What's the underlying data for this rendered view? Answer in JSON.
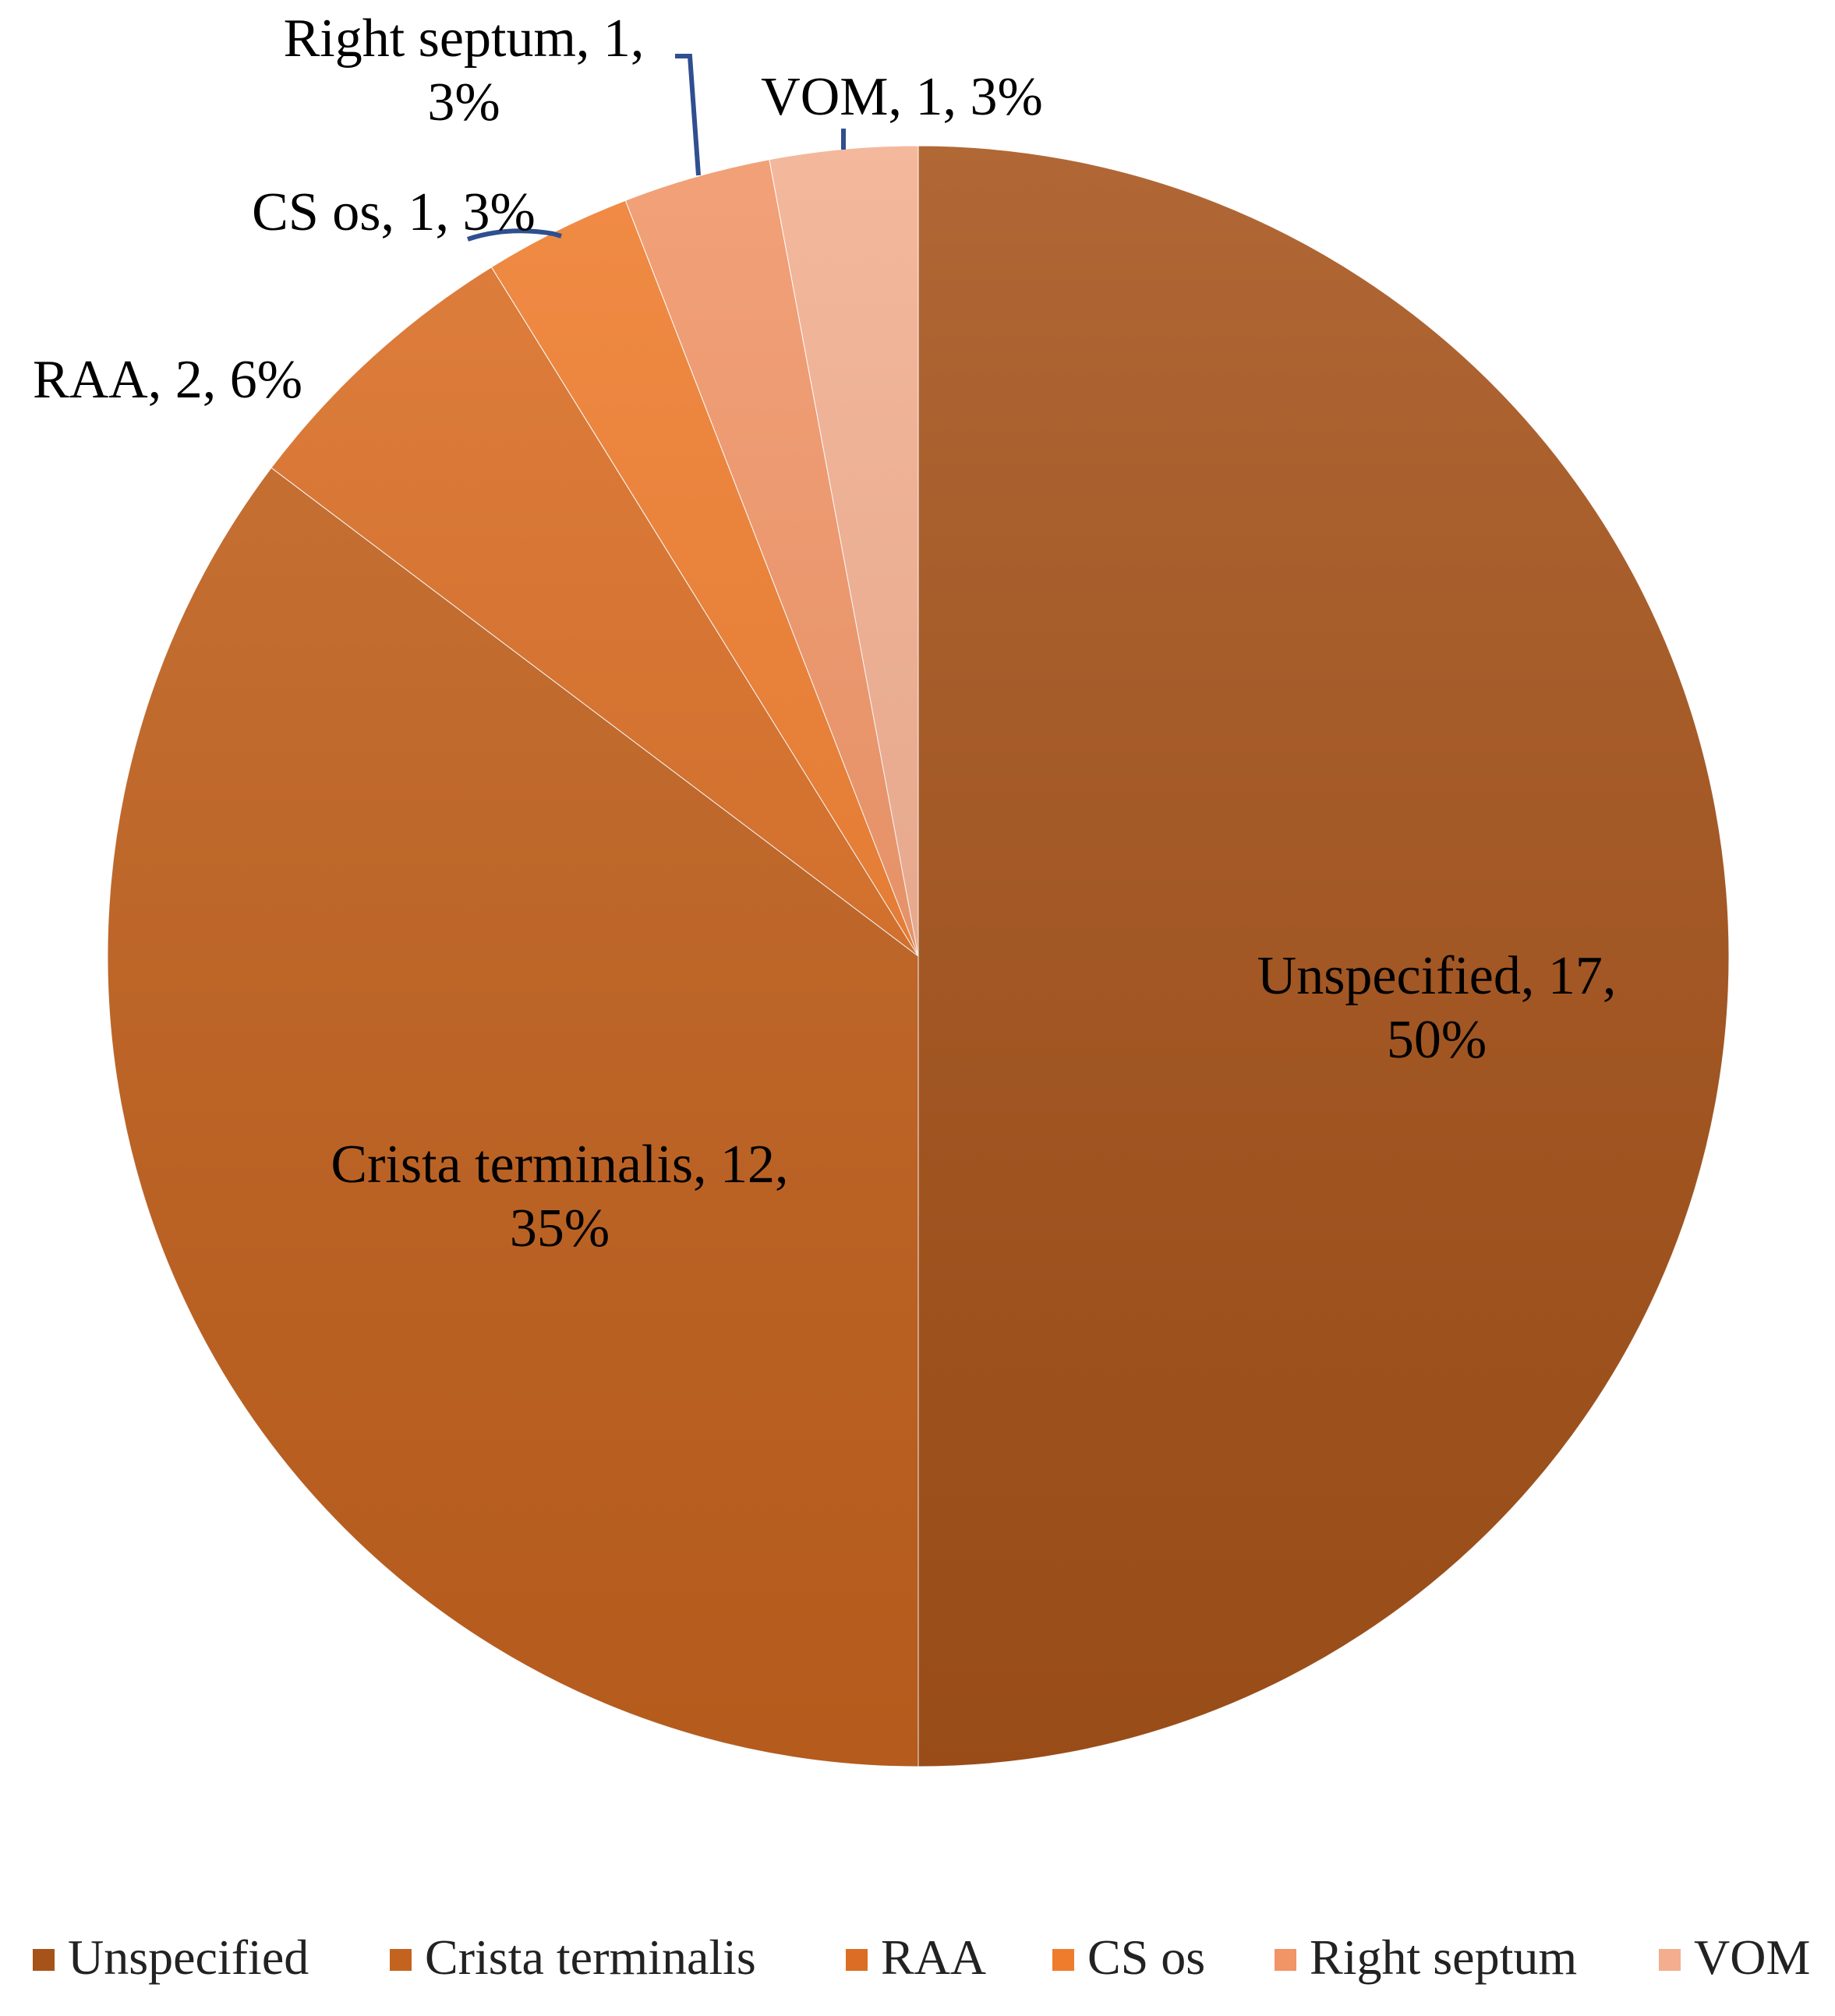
{
  "chart_data": {
    "type": "pie",
    "title": "",
    "categories": [
      "Unspecified",
      "Crista terminalis",
      "RAA",
      "CS os",
      "Right septum",
      "VOM"
    ],
    "values": [
      17,
      12,
      2,
      1,
      1,
      1
    ],
    "percent_labels": [
      "50%",
      "35%",
      "6%",
      "3%",
      "3%",
      "3%"
    ],
    "data_labels": [
      [
        "Unspecified,  17,",
        "50%"
      ],
      [
        "Crista terminalis, 12,",
        "35%"
      ],
      [
        "RAA,  2, 6%"
      ],
      [
        "CS os, 1, 3%"
      ],
      [
        "Right septum, 1,",
        "3%"
      ],
      [
        "VOM, 1, 3%"
      ]
    ],
    "colors": [
      "#A6531A",
      "#C4631F",
      "#DB6E24",
      "#EF7C2C",
      "#F19466",
      "#F2AE8F"
    ],
    "start_angle": "12 o'clock",
    "direction": "clockwise",
    "legend": {
      "position": "bottom",
      "entries": [
        "Unspecified",
        "Crista terminalis",
        "RAA",
        "CS os",
        "Right septum",
        "VOM"
      ]
    }
  }
}
